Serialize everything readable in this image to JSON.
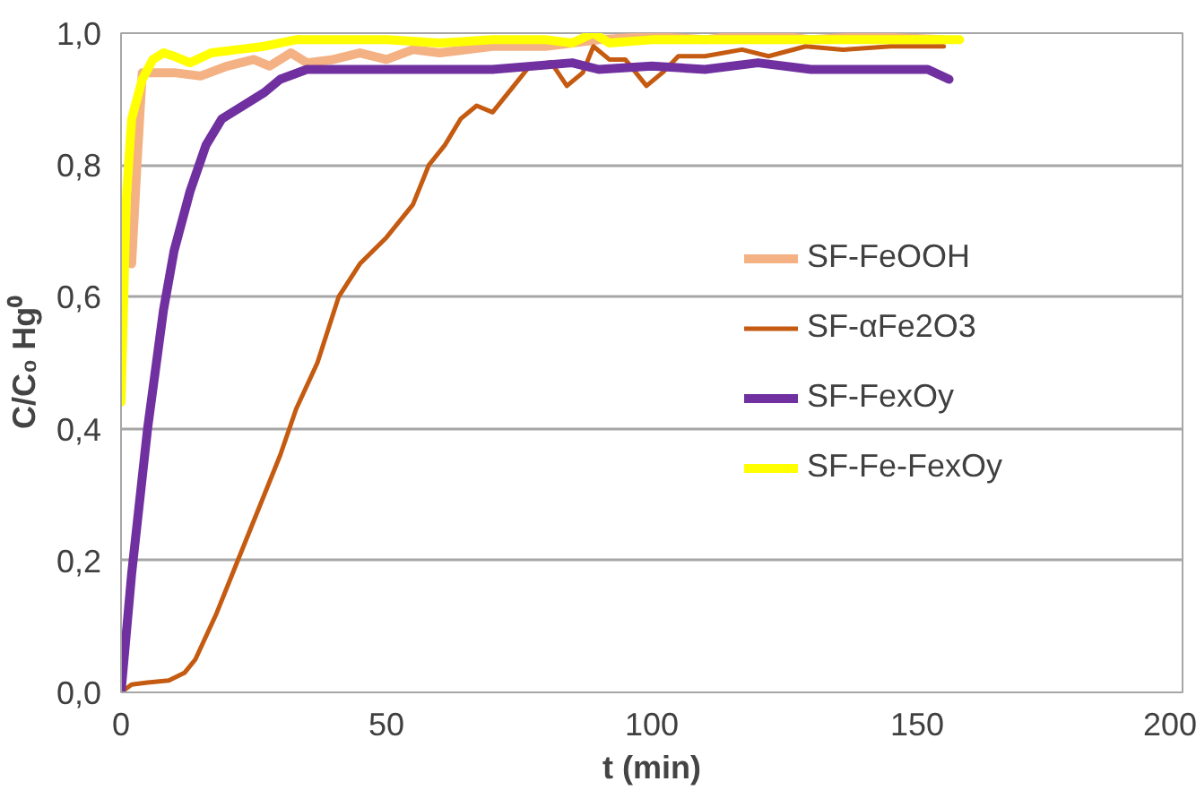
{
  "chart_data": {
    "type": "line",
    "xlabel": "t (min)",
    "ylabel": "C/C₀ Hg⁰",
    "xlim": [
      0,
      200
    ],
    "xticks": [
      0,
      50,
      100,
      150,
      200
    ],
    "ylim": [
      0,
      1
    ],
    "yticks": [
      {
        "value": 0,
        "label": "0,0"
      },
      {
        "value": 0.2,
        "label": "0,2"
      },
      {
        "value": 0.4,
        "label": "0,4"
      },
      {
        "value": 0.6,
        "label": "0,6"
      },
      {
        "value": 0.8,
        "label": "0,8"
      },
      {
        "value": 1,
        "label": "1,0"
      }
    ],
    "grid": "y",
    "legend": "right",
    "line_style": "solid",
    "marker": "none",
    "series": [
      {
        "name": "SF-FeOOH",
        "color": "#f4b183",
        "x": [
          0,
          2,
          3,
          4,
          10,
          15,
          20,
          25,
          28,
          32,
          35,
          40,
          45,
          50,
          55,
          60,
          70,
          80,
          90,
          100,
          110,
          120,
          130,
          140,
          155
        ],
        "values": [
          0.68,
          0.65,
          0.8,
          0.94,
          0.94,
          0.935,
          0.95,
          0.96,
          0.95,
          0.97,
          0.955,
          0.96,
          0.97,
          0.96,
          0.975,
          0.97,
          0.98,
          0.98,
          0.99,
          0.995,
          0.99,
          1.0,
          0.99,
          0.995,
          0.99
        ]
      },
      {
        "name": "SF-αFe2O3",
        "color": "#c55a11",
        "x": [
          0,
          2,
          5,
          9,
          12,
          14,
          18,
          22,
          27,
          30,
          33,
          37,
          41,
          45,
          50,
          55,
          58,
          61,
          64,
          67,
          70,
          74,
          77,
          81,
          84,
          87,
          89,
          92,
          95,
          99,
          102,
          105,
          110,
          117,
          122,
          129,
          136,
          145,
          155
        ],
        "values": [
          0,
          0.012,
          0.015,
          0.018,
          0.03,
          0.05,
          0.12,
          0.2,
          0.3,
          0.36,
          0.43,
          0.5,
          0.6,
          0.65,
          0.69,
          0.74,
          0.8,
          0.83,
          0.87,
          0.89,
          0.88,
          0.92,
          0.95,
          0.956,
          0.92,
          0.94,
          0.98,
          0.96,
          0.96,
          0.92,
          0.94,
          0.965,
          0.965,
          0.975,
          0.965,
          0.98,
          0.975,
          0.98,
          0.98
        ]
      },
      {
        "name": "SF-FexOy",
        "color": "#7030a0",
        "x": [
          0,
          2,
          5,
          8,
          10,
          13,
          16,
          19,
          23,
          27,
          30,
          35,
          50,
          70,
          85,
          90,
          100,
          110,
          120,
          130,
          145,
          152,
          156
        ],
        "values": [
          0,
          0.18,
          0.4,
          0.58,
          0.67,
          0.76,
          0.83,
          0.87,
          0.89,
          0.91,
          0.93,
          0.945,
          0.945,
          0.945,
          0.955,
          0.945,
          0.95,
          0.945,
          0.955,
          0.945,
          0.945,
          0.945,
          0.93
        ]
      },
      {
        "name": "SF-Fe-FexOy",
        "color": "#ffff00",
        "x": [
          0,
          1,
          2,
          4,
          6,
          8,
          10,
          13,
          17,
          22,
          27,
          33,
          40,
          50,
          60,
          70,
          80,
          85,
          89,
          92,
          100,
          120,
          140,
          158
        ],
        "values": [
          0.44,
          0.75,
          0.87,
          0.93,
          0.96,
          0.97,
          0.965,
          0.955,
          0.97,
          0.975,
          0.98,
          0.99,
          0.99,
          0.99,
          0.985,
          0.99,
          0.99,
          0.985,
          1.0,
          0.985,
          0.99,
          0.99,
          0.99,
          0.99
        ]
      }
    ]
  }
}
